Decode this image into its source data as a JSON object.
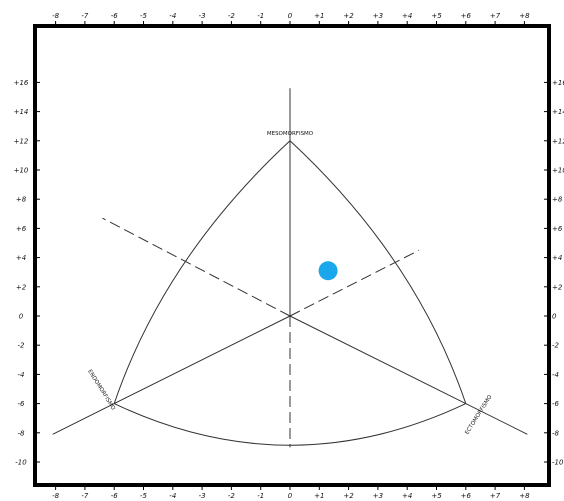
{
  "chart_data": {
    "type": "scatter",
    "title": "",
    "xlabel": "",
    "ylabel": "",
    "x_ticks": [
      "-8",
      "-7",
      "-6",
      "-5",
      "-4",
      "-3",
      "-2",
      "-1",
      "0",
      "+1",
      "+2",
      "+3",
      "+4",
      "+5",
      "+6",
      "+7",
      "+8"
    ],
    "y_ticks": [
      "+16",
      "+14",
      "+12",
      "+10",
      "+8",
      "+6",
      "+4",
      "+2",
      "0",
      "-2",
      "-4",
      "-6",
      "-8",
      "-10"
    ],
    "xlim": [
      -8.5,
      8.5
    ],
    "ylim": [
      -11,
      18.5
    ],
    "grid": false,
    "poles": {
      "mesomorph": {
        "label": "MESOMORFISMO",
        "x": 0,
        "y": 12
      },
      "endomorph": {
        "label": "ENDOMORFISMO",
        "x": -6,
        "y": -6
      },
      "ectomorph": {
        "label": "ECTOMORFISMO",
        "x": 6,
        "y": -6
      }
    },
    "points": [
      {
        "x": 1.3,
        "y": 3.1,
        "color": "#1aa7ec"
      }
    ]
  },
  "colors": {
    "frame": "#000000",
    "lines": "#333333",
    "point": "#1aa7ec"
  }
}
